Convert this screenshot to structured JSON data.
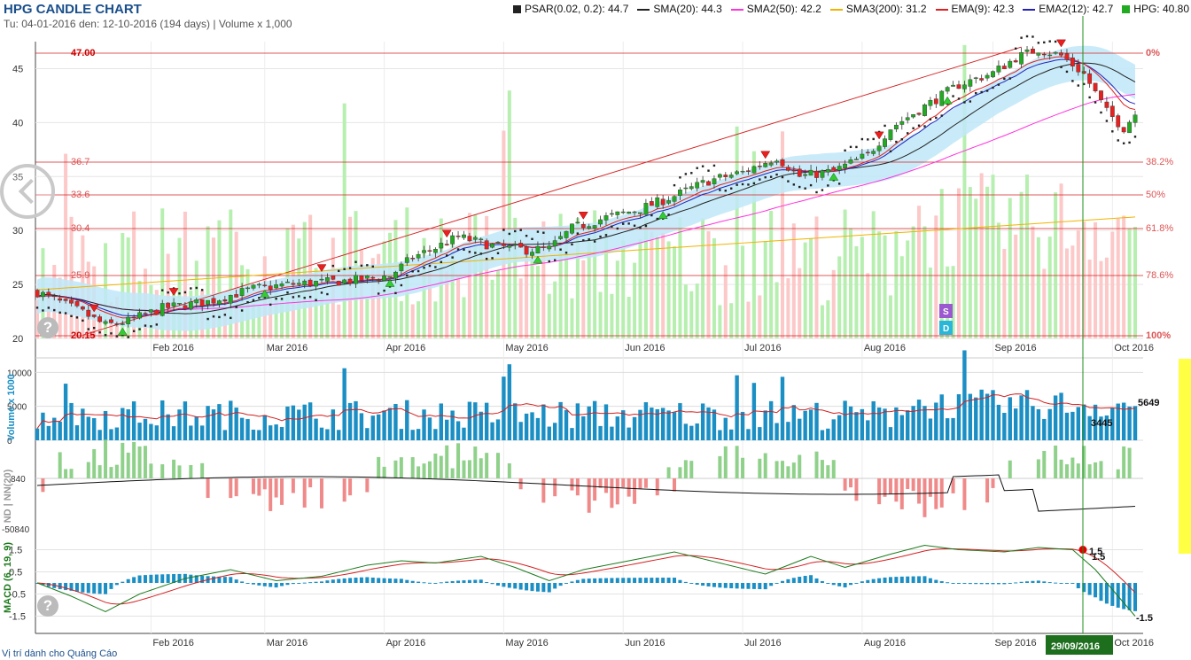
{
  "header": {
    "title": "HPG CANDLE CHART",
    "subtitle": "Tu: 04-01-2016 den: 12-10-2016 (194 days) | Volume x 1,000"
  },
  "legend": [
    {
      "label": "PSAR(0.02, 0.2): 44.7",
      "color": "#222222",
      "kind": "square"
    },
    {
      "label": "SMA(20): 44.3",
      "color": "#222222",
      "kind": "line"
    },
    {
      "label": "SMA2(50): 42.2",
      "color": "#ff33dd",
      "kind": "line"
    },
    {
      "label": "SMA3(200): 31.2",
      "color": "#f0b400",
      "kind": "line"
    },
    {
      "label": "EMA(9): 42.3",
      "color": "#e02020",
      "kind": "line"
    },
    {
      "label": "EMA2(12): 42.7",
      "color": "#2222bb",
      "kind": "line"
    },
    {
      "label": "HPG: 40.80",
      "color": "#22aa22",
      "kind": "square"
    }
  ],
  "footer": "Vị trí dành cho Quảng Cáo",
  "colors": {
    "up": "#22aa22",
    "down": "#e82020",
    "volume": "#1b8fc4",
    "band": "#bfe8f8"
  },
  "icons": [
    "chevron-left-icon",
    "help-icon"
  ],
  "chart_data": [
    {
      "type": "candlestick",
      "name": "price",
      "x_ticks": [
        "Feb 2016",
        "Mar 2016",
        "Apr 2016",
        "May 2016",
        "Jun 2016",
        "Jul 2016",
        "Aug 2016",
        "Sep 2016",
        "Oct 2016"
      ],
      "y_ticks": [
        "20",
        "25",
        "30",
        "35",
        "40",
        "45"
      ],
      "ylim": [
        20,
        47.5
      ],
      "fibonacci": [
        {
          "price": "47.00",
          "pct": "0%"
        },
        {
          "price": "36.7",
          "pct": "38.2%"
        },
        {
          "price": "33.6",
          "pct": "50%"
        },
        {
          "price": "30.4",
          "pct": "61.8%"
        },
        {
          "price": "25.9",
          "pct": "78.6%"
        },
        {
          "price": "20.15",
          "pct": "100%"
        }
      ],
      "close_path": [
        [
          0,
          24.3
        ],
        [
          8,
          22.4
        ],
        [
          12,
          21.2
        ],
        [
          16,
          21.6
        ],
        [
          22,
          22.8
        ],
        [
          30,
          23.4
        ],
        [
          38,
          24.6
        ],
        [
          44,
          25.0
        ],
        [
          50,
          25.2
        ],
        [
          56,
          25.4
        ],
        [
          62,
          25.8
        ],
        [
          66,
          27.5
        ],
        [
          70,
          28.4
        ],
        [
          74,
          29.4
        ],
        [
          80,
          28.6
        ],
        [
          86,
          28.2
        ],
        [
          90,
          28.3
        ],
        [
          94,
          30.2
        ],
        [
          100,
          31.2
        ],
        [
          106,
          32.0
        ],
        [
          112,
          33.2
        ],
        [
          118,
          34.6
        ],
        [
          124,
          35.4
        ],
        [
          130,
          36.8
        ],
        [
          134,
          35.0
        ],
        [
          140,
          35.5
        ],
        [
          146,
          37.0
        ],
        [
          150,
          39.5
        ],
        [
          156,
          41.5
        ],
        [
          162,
          43.5
        ],
        [
          168,
          44.6
        ],
        [
          172,
          46.0
        ],
        [
          176,
          46.8
        ],
        [
          180,
          46.2
        ],
        [
          184,
          44.5
        ],
        [
          188,
          41.0
        ],
        [
          191,
          39.5
        ],
        [
          193,
          40.8
        ]
      ],
      "markers": [
        {
          "label": "S"
        },
        {
          "label": "D"
        }
      ]
    },
    {
      "type": "bar",
      "name": "volume",
      "ylabel": "Volume x 1000",
      "y_ticks": [
        "0",
        "5000",
        "10000"
      ],
      "labels": [
        "5649",
        "3445"
      ]
    },
    {
      "type": "bar",
      "name": "nd-nn",
      "ylabel": "ND | NN(20)",
      "y_ticks": [
        "840",
        "-50840"
      ]
    },
    {
      "type": "line",
      "name": "macd",
      "ylabel": "MACD (6, 19, 9)",
      "y_ticks": [
        "1.5",
        "0.5",
        "-0.5",
        "-1.5"
      ],
      "ylim": [
        -1.6,
        1.8
      ],
      "labels": [
        "1.5",
        "1.5",
        "-1.5"
      ],
      "path": [
        [
          0,
          0.0
        ],
        [
          6,
          -0.6
        ],
        [
          12,
          -1.3
        ],
        [
          18,
          -0.5
        ],
        [
          26,
          0.2
        ],
        [
          34,
          0.6
        ],
        [
          42,
          0.1
        ],
        [
          50,
          0.3
        ],
        [
          58,
          0.8
        ],
        [
          64,
          1.0
        ],
        [
          70,
          0.9
        ],
        [
          78,
          1.2
        ],
        [
          84,
          0.7
        ],
        [
          90,
          0.1
        ],
        [
          96,
          0.6
        ],
        [
          104,
          1.0
        ],
        [
          112,
          1.4
        ],
        [
          120,
          0.9
        ],
        [
          128,
          0.4
        ],
        [
          136,
          1.2
        ],
        [
          142,
          0.7
        ],
        [
          150,
          1.3
        ],
        [
          156,
          1.7
        ],
        [
          162,
          1.5
        ],
        [
          170,
          1.4
        ],
        [
          176,
          1.6
        ],
        [
          182,
          1.5
        ],
        [
          186,
          0.6
        ],
        [
          190,
          -0.6
        ],
        [
          193,
          -1.5
        ]
      ],
      "date_marker": "29/09/2016"
    }
  ]
}
